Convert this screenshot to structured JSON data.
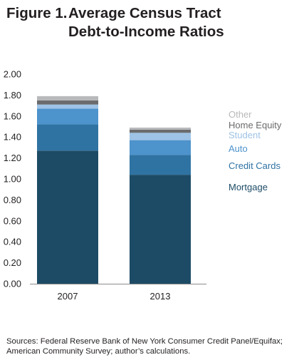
{
  "figure": {
    "number": "Figure 1.",
    "title_line1": "Average Census Tract",
    "title_line2": "Debt-to-Income Ratios"
  },
  "chart_data": {
    "type": "bar",
    "stacked": true,
    "categories": [
      "2007",
      "2013"
    ],
    "ylim": [
      0,
      2.0
    ],
    "yticks": [
      "0.00",
      "0.20",
      "0.40",
      "0.60",
      "0.80",
      "1.00",
      "1.20",
      "1.40",
      "1.60",
      "1.80",
      "2.00"
    ],
    "grid": false,
    "legend_placement": "right",
    "series": [
      {
        "name": "Mortgage",
        "values": [
          1.27,
          1.04
        ],
        "color": "#1d4b66"
      },
      {
        "name": "Credit Cards",
        "values": [
          0.25,
          0.19
        ],
        "color": "#2f73a3"
      },
      {
        "name": "Auto",
        "values": [
          0.15,
          0.14
        ],
        "color": "#4d93cc"
      },
      {
        "name": "Student",
        "values": [
          0.04,
          0.07
        ],
        "color": "#9ec3e6"
      },
      {
        "name": "Home Equity",
        "values": [
          0.04,
          0.03
        ],
        "color": "#6b6b6d"
      },
      {
        "name": "Other",
        "values": [
          0.04,
          0.02
        ],
        "color": "#b8b9bb"
      }
    ]
  },
  "source": "Sources: Federal Reserve Bank of New York Consumer Credit Panel/Equifax; American Community Survey; author’s calculations."
}
